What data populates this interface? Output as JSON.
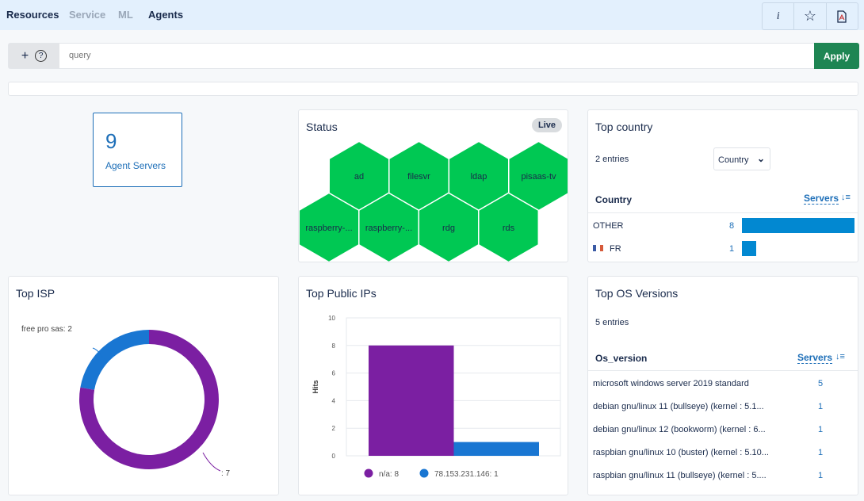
{
  "nav": {
    "items": [
      {
        "label": "Resources"
      },
      {
        "label": "Service"
      },
      {
        "label": "ML"
      },
      {
        "label": "Agents"
      }
    ]
  },
  "toolbar": {
    "info": "i",
    "star": "☆",
    "pdf": "pdf-icon"
  },
  "query": {
    "plus": "+",
    "help": "?",
    "placeholder": "query",
    "value": "",
    "apply": "Apply"
  },
  "kpi": {
    "value": "9",
    "label": "Agent Servers"
  },
  "status": {
    "title": "Status",
    "badge": "Live",
    "color": "#00c853",
    "hosts": [
      "ad",
      "filesvr",
      "ldap",
      "pisaas-tv",
      "raspberry-...",
      "raspberry-...",
      "rdg",
      "rds"
    ]
  },
  "country": {
    "title": "Top country",
    "entries": "2 entries",
    "select": "Country",
    "col1": "Country",
    "col2": "Servers",
    "rows": [
      {
        "name": "OTHER",
        "flag": "",
        "value": 8
      },
      {
        "name": "FR",
        "flag": "fr",
        "value": 1
      }
    ],
    "bar_color": "#0288d1"
  },
  "isp": {
    "title": "Top ISP",
    "chart_data": {
      "type": "pie",
      "donut": true,
      "slices": [
        {
          "label": "free pro sas: 2",
          "name": "free pro sas",
          "value": 2,
          "color": "#1976d2"
        },
        {
          "label": ": 7",
          "name": "",
          "value": 7,
          "color": "#7b1fa2"
        }
      ]
    }
  },
  "ips": {
    "title": "Top Public IPs",
    "chart_data": {
      "type": "bar",
      "ylabel": "Hits",
      "ylim": [
        0,
        10
      ],
      "yticks": [
        "0",
        "2",
        "4",
        "6",
        "8",
        "10"
      ],
      "grid": true,
      "legend": "bottom",
      "series": [
        {
          "name": "n/a",
          "value": 8,
          "label": "n/a: 8",
          "color": "#7b1fa2"
        },
        {
          "name": "78.153.231.146",
          "value": 1,
          "label": "78.153.231.146: 1",
          "color": "#1976d2"
        }
      ]
    }
  },
  "os": {
    "title": "Top OS Versions",
    "entries": "5 entries",
    "col1": "Os_version",
    "col2": "Servers",
    "rows": [
      {
        "name": "microsoft windows server 2019 standard",
        "value": "5"
      },
      {
        "name": "debian gnu/linux 11 (bullseye) (kernel : 5.1...",
        "value": "1"
      },
      {
        "name": "debian gnu/linux 12 (bookworm) (kernel : 6...",
        "value": "1"
      },
      {
        "name": "raspbian gnu/linux 10 (buster) (kernel : 5.10...",
        "value": "1"
      },
      {
        "name": "raspbian gnu/linux 11 (bullseye) (kernel : 5....",
        "value": "1"
      }
    ]
  }
}
